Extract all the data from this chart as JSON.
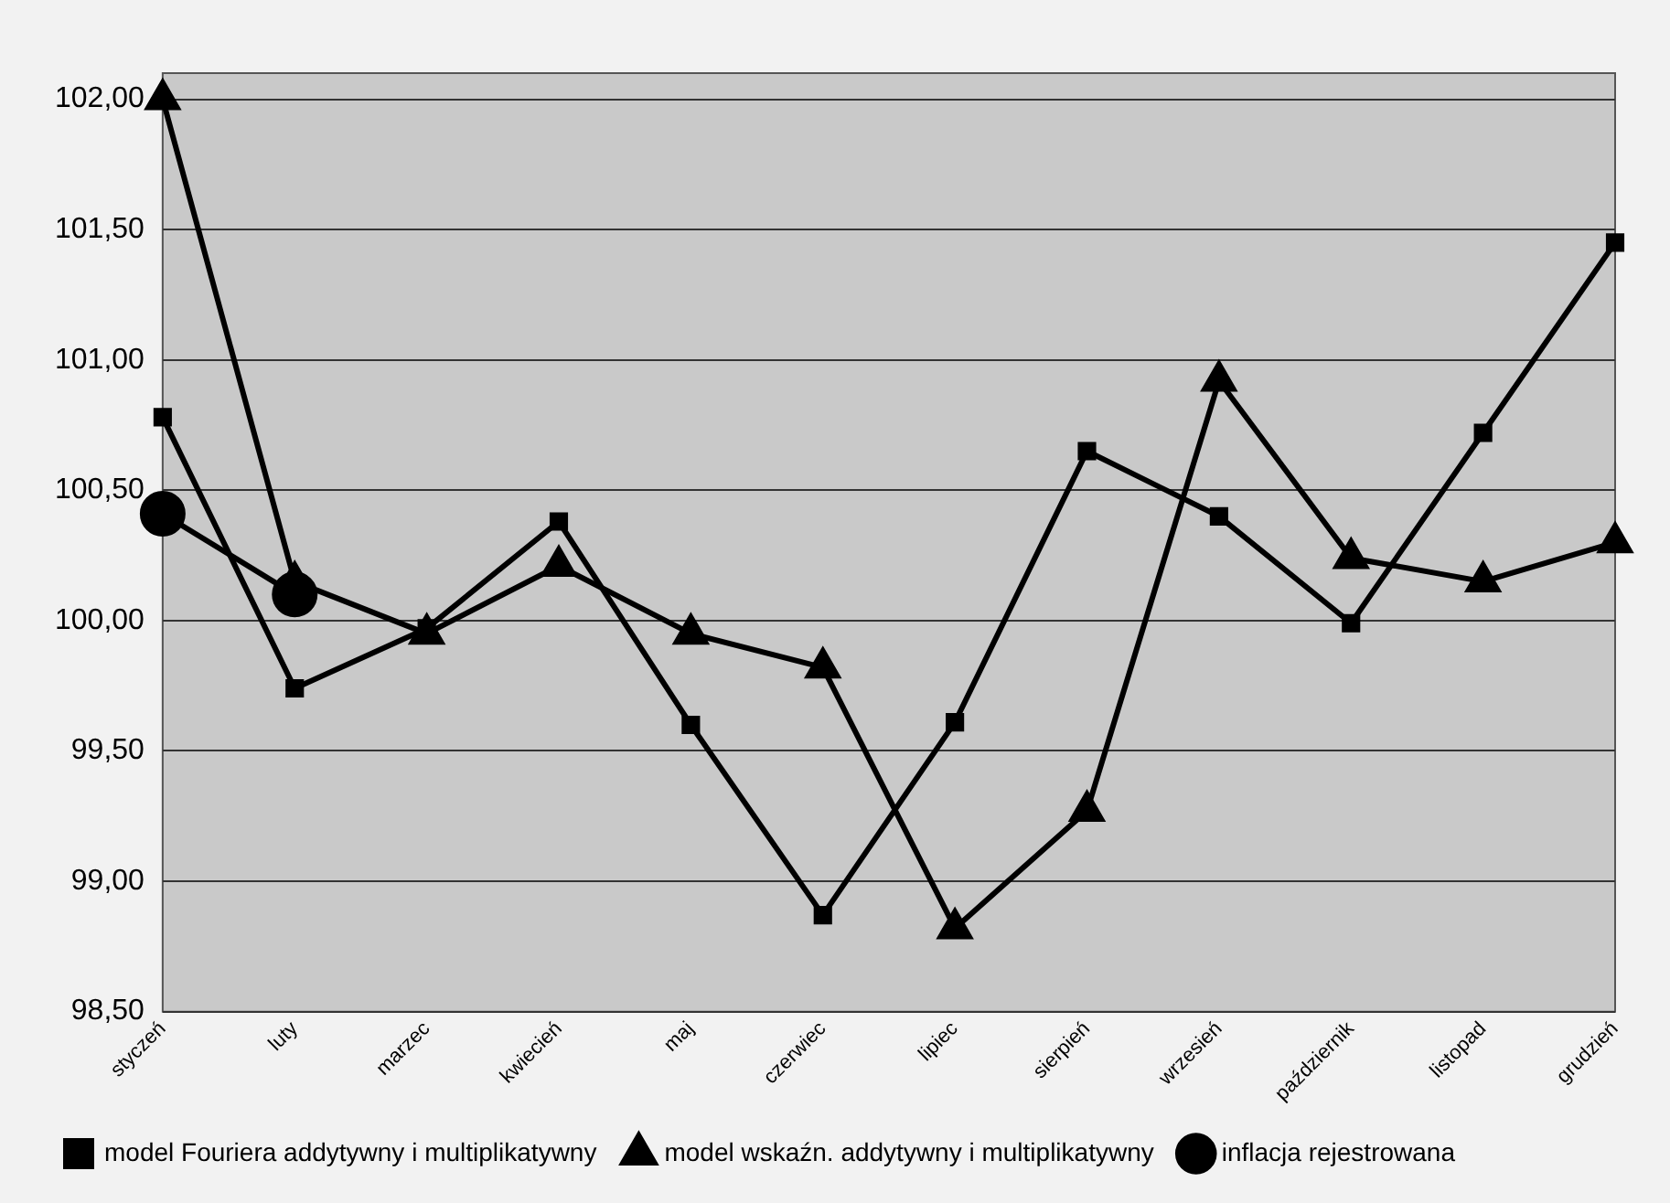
{
  "chart_data": {
    "type": "line",
    "categories": [
      "styczeń",
      "luty",
      "marzec",
      "kwiecień",
      "maj",
      "czerwiec",
      "lipiec",
      "sierpień",
      "wrzesień",
      "październik",
      "listopad",
      "grudzień"
    ],
    "series": [
      {
        "name": "model wskaźn. addytywny i multiplikatywny",
        "color": "#000000",
        "marker": "triangle",
        "values": [
          102.0,
          100.15,
          99.95,
          100.21,
          99.95,
          99.82,
          98.82,
          99.27,
          100.92,
          100.24,
          100.15,
          100.3
        ]
      },
      {
        "name": "model Fouriera addytywny i multiplikatywny",
        "color": "#000000",
        "marker": "square",
        "values": [
          100.78,
          99.74,
          99.97,
          100.38,
          99.6,
          98.87,
          99.61,
          100.65,
          100.4,
          99.99,
          100.72,
          101.45
        ]
      },
      {
        "name": "inflacja rejestrowana",
        "color": "#000000",
        "marker": "circle",
        "values": [
          100.41,
          100.1,
          null,
          null,
          null,
          null,
          null,
          null,
          null,
          null,
          null,
          null
        ]
      }
    ],
    "ylim": [
      98.5,
      102.1
    ],
    "yticks": [
      {
        "value": 98.5,
        "label": "98,50"
      },
      {
        "value": 99,
        "label": "99,00"
      },
      {
        "value": 99.5,
        "label": "99,50"
      },
      {
        "value": 100,
        "label": "100,00"
      },
      {
        "value": 100.5,
        "label": "100,50"
      },
      {
        "value": 101,
        "label": "101,00"
      },
      {
        "value": 101.5,
        "label": "101,50"
      },
      {
        "value": 102,
        "label": "102,00"
      }
    ],
    "grid": "y",
    "legend": "bottom",
    "line_style": "solid"
  }
}
